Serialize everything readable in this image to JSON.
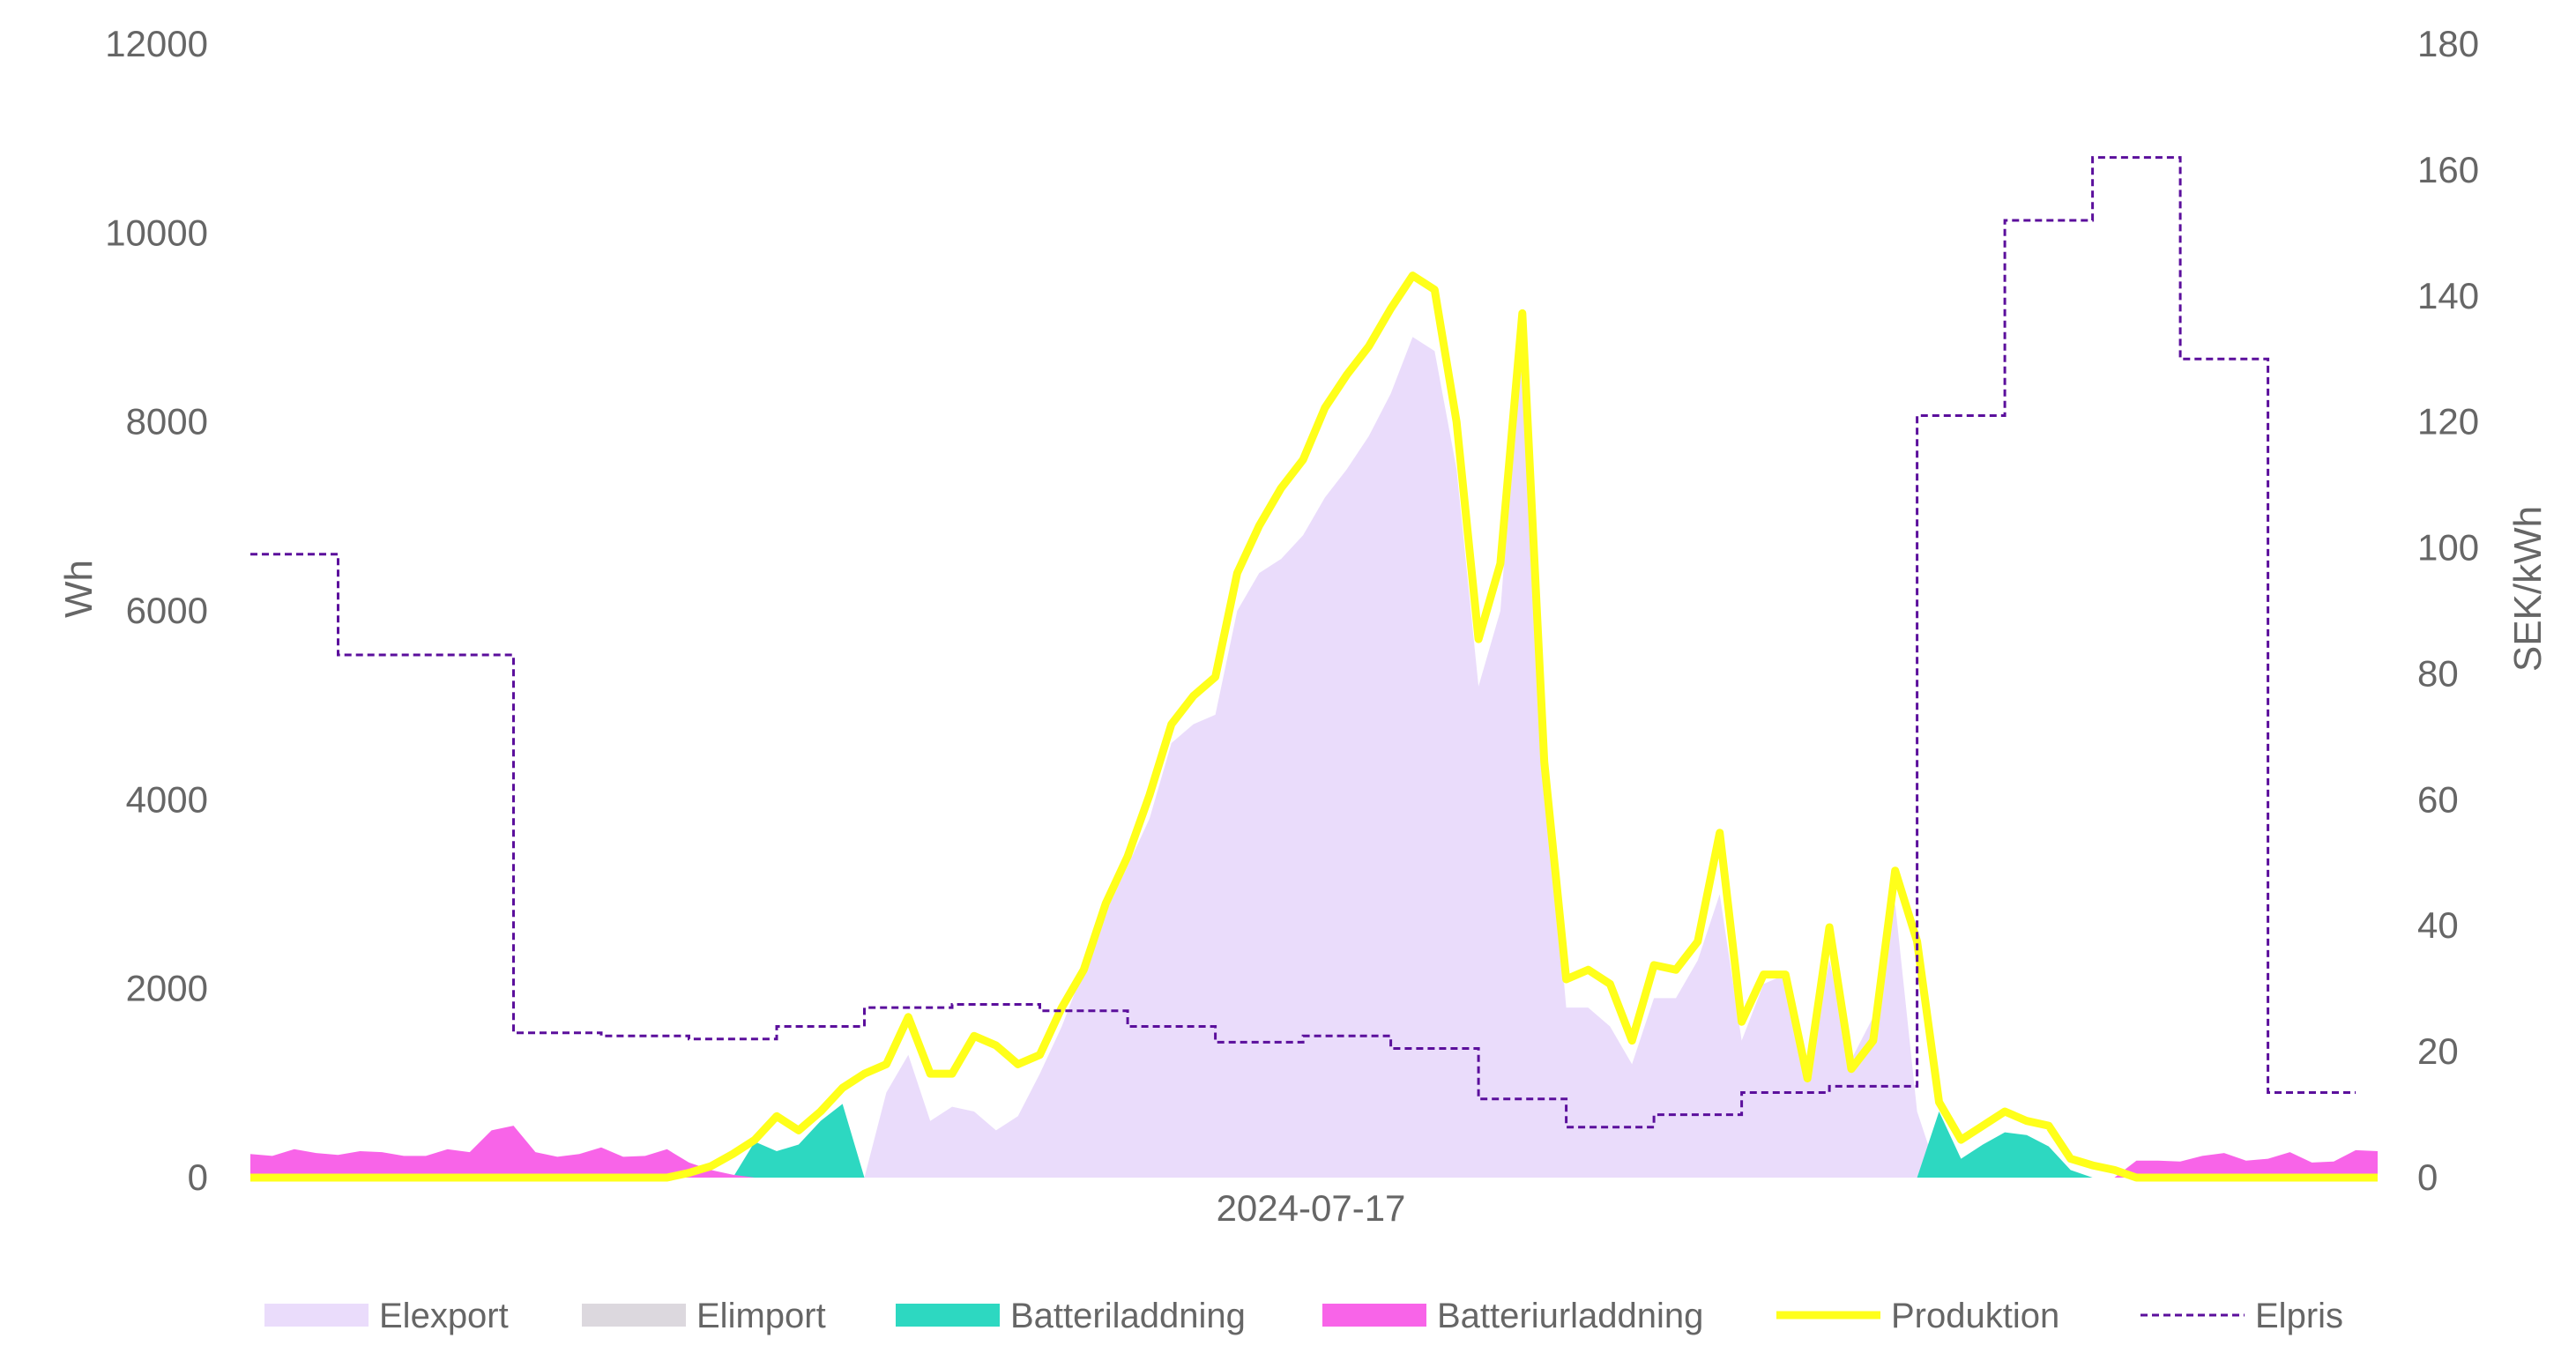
{
  "chart_data": {
    "type": "area",
    "xlabel": "2024-07-17",
    "ylabel": "Wh",
    "ylabel_right": "SEK/kWh",
    "ylim": [
      0,
      12000
    ],
    "ylim_right": [
      0,
      180
    ],
    "yticks": [
      0,
      2000,
      4000,
      6000,
      8000,
      10000,
      12000
    ],
    "yticks_right": [
      0,
      20,
      40,
      60,
      80,
      100,
      120,
      140,
      160,
      180
    ],
    "grid": false,
    "legend_position": "bottom",
    "series": [
      {
        "name": "Elexport",
        "kind": "area",
        "axis": "left",
        "color": "#EADCFB",
        "values": [
          0,
          0,
          0,
          0,
          0,
          0,
          0,
          0,
          0,
          0,
          0,
          0,
          0,
          0,
          0,
          0,
          0,
          0,
          0,
          0,
          0,
          0,
          0,
          0,
          0,
          0,
          0,
          0,
          0,
          900,
          1300,
          600,
          750,
          700,
          500,
          650,
          1100,
          1600,
          2200,
          2800,
          3300,
          3800,
          4600,
          4800,
          4900,
          6000,
          6400,
          6550,
          6800,
          7200,
          7500,
          7850,
          8300,
          8900,
          8750,
          7500,
          5200,
          6000,
          9000,
          4400,
          1800,
          1800,
          1600,
          1200,
          1900,
          1900,
          2300,
          3000,
          1450,
          2050,
          2150,
          1050,
          2300,
          1250,
          1700,
          2900,
          700,
          0,
          0,
          0,
          0,
          0,
          0,
          0,
          0,
          0,
          0,
          0,
          0,
          0,
          0,
          0,
          0,
          0,
          0,
          0,
          0,
          0
        ]
      },
      {
        "name": "Elimport",
        "kind": "area",
        "axis": "left",
        "color": "#DCD8DE",
        "values": [
          0,
          0,
          0,
          0,
          0,
          0,
          0,
          0,
          0,
          0,
          0,
          0,
          0,
          0,
          0,
          0,
          0,
          0,
          0,
          0,
          0,
          0,
          0,
          0,
          0,
          0,
          0,
          0,
          0,
          0,
          0,
          0,
          0,
          0,
          0,
          0,
          0,
          0,
          0,
          0,
          0,
          0,
          0,
          0,
          0,
          0,
          0,
          0,
          0,
          0,
          0,
          0,
          0,
          0,
          0,
          0,
          0,
          0,
          0,
          0,
          0,
          0,
          0,
          0,
          0,
          0,
          0,
          0,
          0,
          0,
          0,
          0,
          0,
          0,
          0,
          0,
          0,
          0,
          0,
          0,
          0,
          0,
          0,
          0,
          0,
          0,
          0,
          0,
          0,
          0,
          0,
          0,
          0,
          0,
          0,
          0,
          0,
          0
        ]
      },
      {
        "name": "Batteriladdning",
        "kind": "area",
        "axis": "left",
        "color": "#2DD8C1",
        "values": [
          0,
          0,
          0,
          0,
          0,
          0,
          0,
          0,
          0,
          0,
          0,
          0,
          0,
          0,
          0,
          0,
          0,
          0,
          0,
          0,
          0,
          0,
          0,
          380,
          280,
          350,
          600,
          780,
          0,
          0,
          0,
          0,
          0,
          0,
          0,
          0,
          0,
          0,
          0,
          0,
          0,
          0,
          0,
          0,
          0,
          0,
          0,
          0,
          0,
          0,
          0,
          0,
          0,
          0,
          0,
          0,
          0,
          0,
          0,
          0,
          0,
          0,
          0,
          0,
          0,
          0,
          0,
          0,
          0,
          0,
          0,
          0,
          0,
          0,
          0,
          0,
          0,
          700,
          200,
          350,
          480,
          450,
          330,
          80,
          0,
          0,
          0,
          0,
          0,
          0,
          0,
          0,
          0,
          0,
          0,
          0,
          0,
          0
        ]
      },
      {
        "name": "Batteriurladdning",
        "kind": "area",
        "axis": "left",
        "color": "#F864E8",
        "values": [
          250,
          230,
          300,
          260,
          240,
          280,
          270,
          230,
          230,
          300,
          270,
          500,
          550,
          270,
          220,
          250,
          320,
          220,
          230,
          300,
          160,
          80,
          30,
          0,
          0,
          0,
          0,
          0,
          0,
          0,
          0,
          0,
          0,
          0,
          0,
          0,
          0,
          0,
          0,
          0,
          0,
          0,
          0,
          0,
          0,
          0,
          0,
          0,
          0,
          0,
          0,
          0,
          0,
          0,
          0,
          0,
          0,
          0,
          0,
          0,
          0,
          0,
          0,
          0,
          0,
          0,
          0,
          0,
          0,
          0,
          0,
          0,
          0,
          0,
          0,
          0,
          0,
          0,
          0,
          0,
          0,
          0,
          0,
          0,
          0,
          0,
          180,
          180,
          170,
          230,
          260,
          180,
          200,
          270,
          160,
          170,
          290,
          280
        ]
      },
      {
        "name": "Produktion",
        "kind": "line",
        "axis": "left",
        "color": "#FFFF1A",
        "values": [
          0,
          0,
          0,
          0,
          0,
          0,
          0,
          0,
          0,
          0,
          0,
          0,
          0,
          0,
          0,
          0,
          0,
          0,
          0,
          0,
          50,
          120,
          250,
          400,
          650,
          500,
          700,
          950,
          1100,
          1200,
          1700,
          1100,
          1100,
          1500,
          1400,
          1200,
          1300,
          1800,
          2200,
          2900,
          3400,
          4050,
          4800,
          5100,
          5300,
          6400,
          6900,
          7300,
          7600,
          8150,
          8500,
          8800,
          9200,
          9550,
          9400,
          8000,
          5700,
          6500,
          9150,
          4400,
          2100,
          2200,
          2050,
          1450,
          2250,
          2200,
          2500,
          3650,
          1650,
          2150,
          2150,
          1050,
          2650,
          1150,
          1450,
          3250,
          2500,
          800,
          400,
          550,
          700,
          600,
          550,
          200,
          130,
          80,
          0,
          0,
          0,
          0,
          0,
          0,
          0,
          0,
          0,
          0,
          0,
          0
        ]
      },
      {
        "name": "Elpris",
        "kind": "dashed-line",
        "axis": "right",
        "color": "#5B0F9C",
        "values": [
          99,
          99,
          99,
          99,
          83,
          83,
          83,
          83,
          83,
          83,
          83,
          83,
          23,
          23,
          23,
          23,
          22.5,
          22.5,
          22.5,
          22.5,
          22,
          22,
          22,
          22,
          24,
          24,
          24,
          24,
          27,
          27,
          27,
          27,
          27.5,
          27.5,
          27.5,
          27.5,
          26.5,
          26.5,
          26.5,
          26.5,
          24,
          24,
          24,
          24,
          21.5,
          21.5,
          21.5,
          21.5,
          22.5,
          22.5,
          22.5,
          22.5,
          20.5,
          20.5,
          20.5,
          20.5,
          12.5,
          12.5,
          12.5,
          12.5,
          8,
          8,
          8,
          8,
          10,
          10,
          10,
          10,
          13.5,
          13.5,
          13.5,
          13.5,
          14.5,
          14.5,
          14.5,
          14.5,
          121,
          121,
          121,
          121,
          152,
          152,
          152,
          152,
          162,
          162,
          162,
          162,
          130,
          130,
          130,
          130,
          13.5,
          13.5,
          13.5,
          13.5
        ]
      }
    ]
  }
}
